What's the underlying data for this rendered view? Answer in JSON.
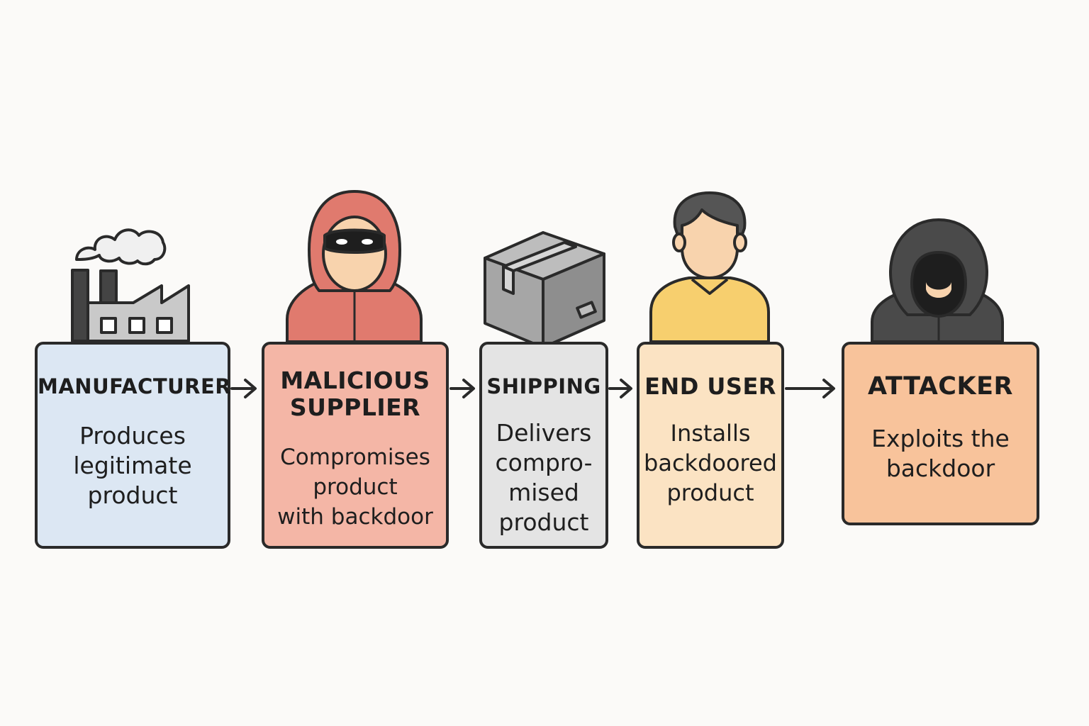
{
  "stages": [
    {
      "title": "MANUFACTURER",
      "description": "Produces\nlegitimate\nproduct",
      "icon": "factory-icon",
      "fill": "#dce7f3"
    },
    {
      "title": "MALICIOUS\nSUPPLIER",
      "description": "Compromises\nproduct\nwith backdoor",
      "icon": "hooded-masked-person-icon",
      "fill": "#f4b6a6"
    },
    {
      "title": "SHIPPING",
      "description": "Delivers\ncompro-\nmised\nproduct",
      "icon": "package-box-icon",
      "fill": "#e4e4e4"
    },
    {
      "title": "END USER",
      "description": "Installs\nbackdoored\nproduct",
      "icon": "user-person-icon",
      "fill": "#fbe3c3"
    },
    {
      "title": "ATTACKER",
      "description": "Exploits the\nbackdoor",
      "icon": "hooded-attacker-icon",
      "fill": "#f8c39b"
    }
  ],
  "colors": {
    "outline": "#2a2a2a",
    "supplier_hood": "#e07a6e",
    "enduser_shirt": "#f7cf6e",
    "attacker_hood": "#4a4a4a",
    "skin": "#f8d3ad"
  }
}
